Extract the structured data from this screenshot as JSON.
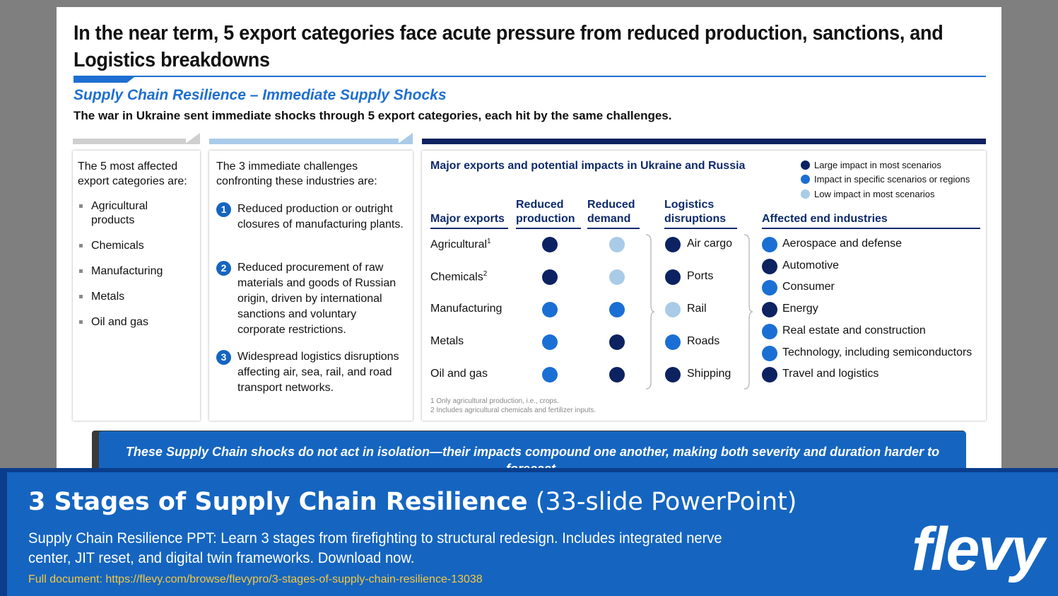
{
  "slide": {
    "title": "In the near term, 5 export categories face acute pressure from reduced production, sanctions, and Logistics breakdowns",
    "subtitle": "Supply Chain Resilience – Immediate Supply Shocks",
    "description": "The war in Ukraine sent immediate shocks through 5 export categories, each hit by the same challenges."
  },
  "panel1": {
    "intro": "The 5 most affected export categories are:",
    "items": [
      "Agricultural products",
      "Chemicals",
      "Manufacturing",
      "Metals",
      "Oil and gas"
    ]
  },
  "panel2": {
    "intro": "The 3 immediate challenges confronting these industries are:",
    "challenges": [
      {
        "num": "1",
        "text": "Reduced production or outright closures of manufacturing plants."
      },
      {
        "num": "2",
        "text": "Reduced procurement of raw materials and goods of Russian origin, driven by international sanctions and voluntary corporate restrictions."
      },
      {
        "num": "3",
        "text": "Widespread logistics disruptions affecting air, sea, rail, and road transport networks."
      }
    ]
  },
  "panel3": {
    "title": "Major exports and potential impacts in Ukraine and Russia",
    "legend": [
      {
        "label": "Large impact in most scenarios",
        "color": "#0d2261"
      },
      {
        "label": "Impact in specific scenarios or regions",
        "color": "#1a6fd4"
      },
      {
        "label": "Low impact in most scenarios",
        "color": "#a9cbe8"
      }
    ],
    "headers": {
      "exports": "Major exports",
      "reduced_production": "Reduced production",
      "reduced_demand": "Reduced demand",
      "logistics": "Logistics disruptions",
      "end_industries": "Affected end industries"
    },
    "exports": [
      {
        "name": "Agricultural",
        "sup": "1",
        "production": "large",
        "demand": "low"
      },
      {
        "name": "Chemicals",
        "sup": "2",
        "production": "large",
        "demand": "low"
      },
      {
        "name": "Manufacturing",
        "sup": "",
        "production": "specific",
        "demand": "specific"
      },
      {
        "name": "Metals",
        "sup": "",
        "production": "specific",
        "demand": "large"
      },
      {
        "name": "Oil and gas",
        "sup": "",
        "production": "specific",
        "demand": "large"
      }
    ],
    "logistics": [
      {
        "name": "Air cargo",
        "impact": "large"
      },
      {
        "name": "Ports",
        "impact": "large"
      },
      {
        "name": "Rail",
        "impact": "low"
      },
      {
        "name": "Roads",
        "impact": "specific"
      },
      {
        "name": "Shipping",
        "impact": "large"
      }
    ],
    "industries": [
      {
        "name": "Aerospace and defense",
        "impact": "specific"
      },
      {
        "name": "Automotive",
        "impact": "large"
      },
      {
        "name": "Consumer",
        "impact": "specific"
      },
      {
        "name": "Energy",
        "impact": "large"
      },
      {
        "name": "Real estate and construction",
        "impact": "specific"
      },
      {
        "name": "Technology, including semiconductors",
        "impact": "specific"
      },
      {
        "name": "Travel and logistics",
        "impact": "large"
      }
    ],
    "footnotes": [
      "1 Only agricultural production, i.e., crops.",
      "2 Includes agricultural chemicals and fertilizer inputs."
    ]
  },
  "callout": {
    "text": "These Supply Chain shocks do not act in isolation—their impacts compound one another, making both severity and duration harder to forecast."
  },
  "banner": {
    "title_bold": "3 Stages of Supply Chain Resilience",
    "title_light": " (33-slide PowerPoint)",
    "description": "Supply Chain Resilience PPT: Learn 3 stages from firefighting to structural redesign. Includes integrated nerve center, JIT reset, and digital twin frameworks. Download now.",
    "link": "Full document: https://flevy.com/browse/flevypro/3-stages-of-supply-chain-resilience-13038",
    "logo": "flevy"
  },
  "colors": {
    "large": "#0d2261",
    "specific": "#1a6fd4",
    "low": "#a9cbe8",
    "accent": "#1565c0"
  }
}
